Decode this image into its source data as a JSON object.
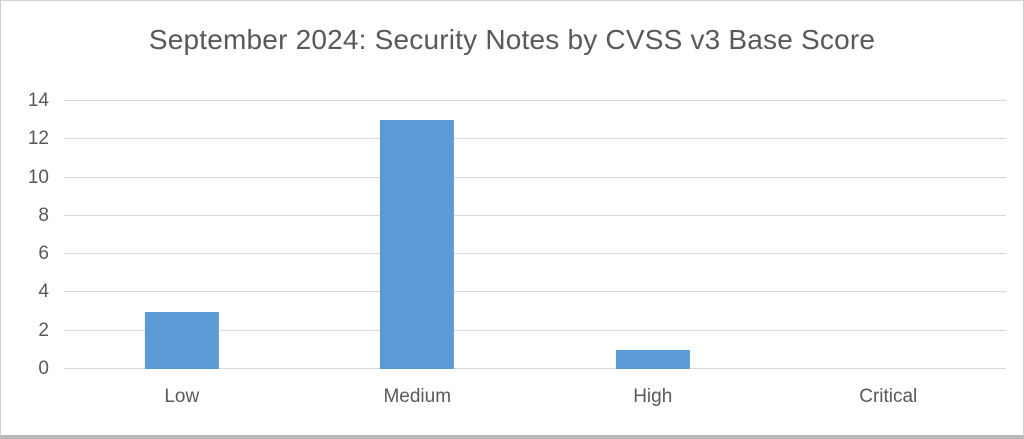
{
  "chart_data": {
    "type": "bar",
    "title": "September 2024: Security Notes by CVSS v3 Base Score",
    "categories": [
      "Low",
      "Medium",
      "High",
      "Critical"
    ],
    "values": [
      3,
      13,
      1,
      0
    ],
    "xlabel": "",
    "ylabel": "",
    "ylim": [
      0,
      14
    ],
    "yticks": [
      0,
      2,
      4,
      6,
      8,
      10,
      12,
      14
    ],
    "grid": "horizontal",
    "legend": "none",
    "colors": {
      "bar": "#5B9BD5",
      "gridline": "#D9D9D9",
      "text": "#595959",
      "background": "#FFFFFF"
    }
  }
}
